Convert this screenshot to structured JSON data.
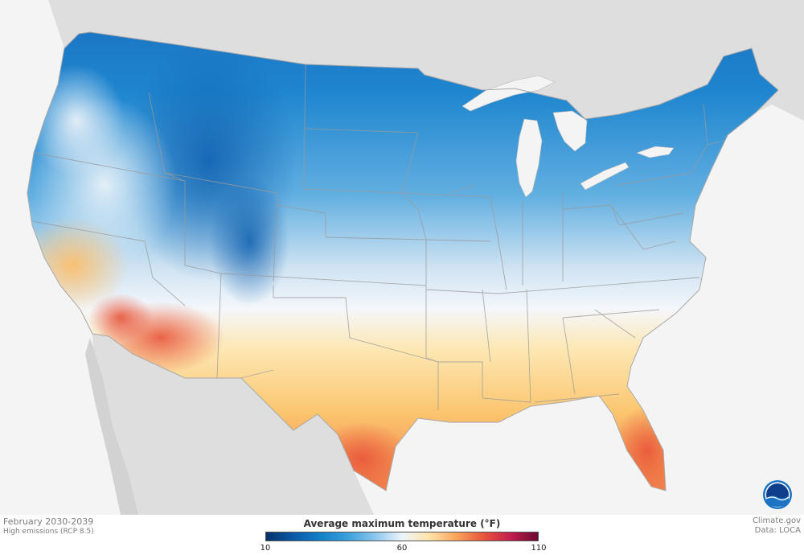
{
  "map": {
    "period": "February 2030-2039",
    "scenario": "High emissions (RCP 8.5)"
  },
  "legend": {
    "title": "Average maximum temperature (°F)",
    "ticks": [
      "10",
      "60",
      "110"
    ],
    "scale_min": 10,
    "scale_mid": 60,
    "scale_max": 110
  },
  "credits": {
    "source": "Climate.gov",
    "data": "Data: LOCA"
  },
  "logo": {
    "text": "NOAA"
  },
  "colors": {
    "cold": "#0b5aa8",
    "mid": "#eef5fb",
    "warm": "#f8a45b",
    "hot": "#6b0832",
    "land_outside": "#dcdcdc",
    "water": "#f4f4f4",
    "noaa_blue": "#1b73c4"
  }
}
